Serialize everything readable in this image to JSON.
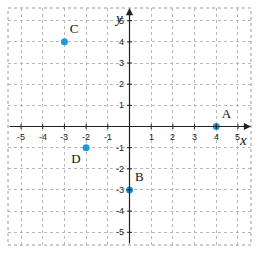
{
  "chart_data": {
    "type": "scatter",
    "x_label": "x",
    "y_label": "y",
    "x": [
      4,
      0,
      -3,
      -2
    ],
    "values": [
      0,
      -3,
      4,
      -1
    ],
    "point_labels": [
      "A",
      "B",
      "C",
      "D"
    ],
    "color": "#1a9bd7",
    "marker": "circle",
    "xlim": [
      -5.6,
      5.6
    ],
    "ylim": [
      -5.6,
      5.6
    ],
    "xticks": [
      -5,
      -4,
      -3,
      -2,
      -1,
      1,
      2,
      3,
      4,
      5
    ],
    "yticks": [
      -5,
      -4,
      -3,
      -2,
      -1,
      1,
      2,
      3,
      4,
      5
    ],
    "grid": true
  }
}
